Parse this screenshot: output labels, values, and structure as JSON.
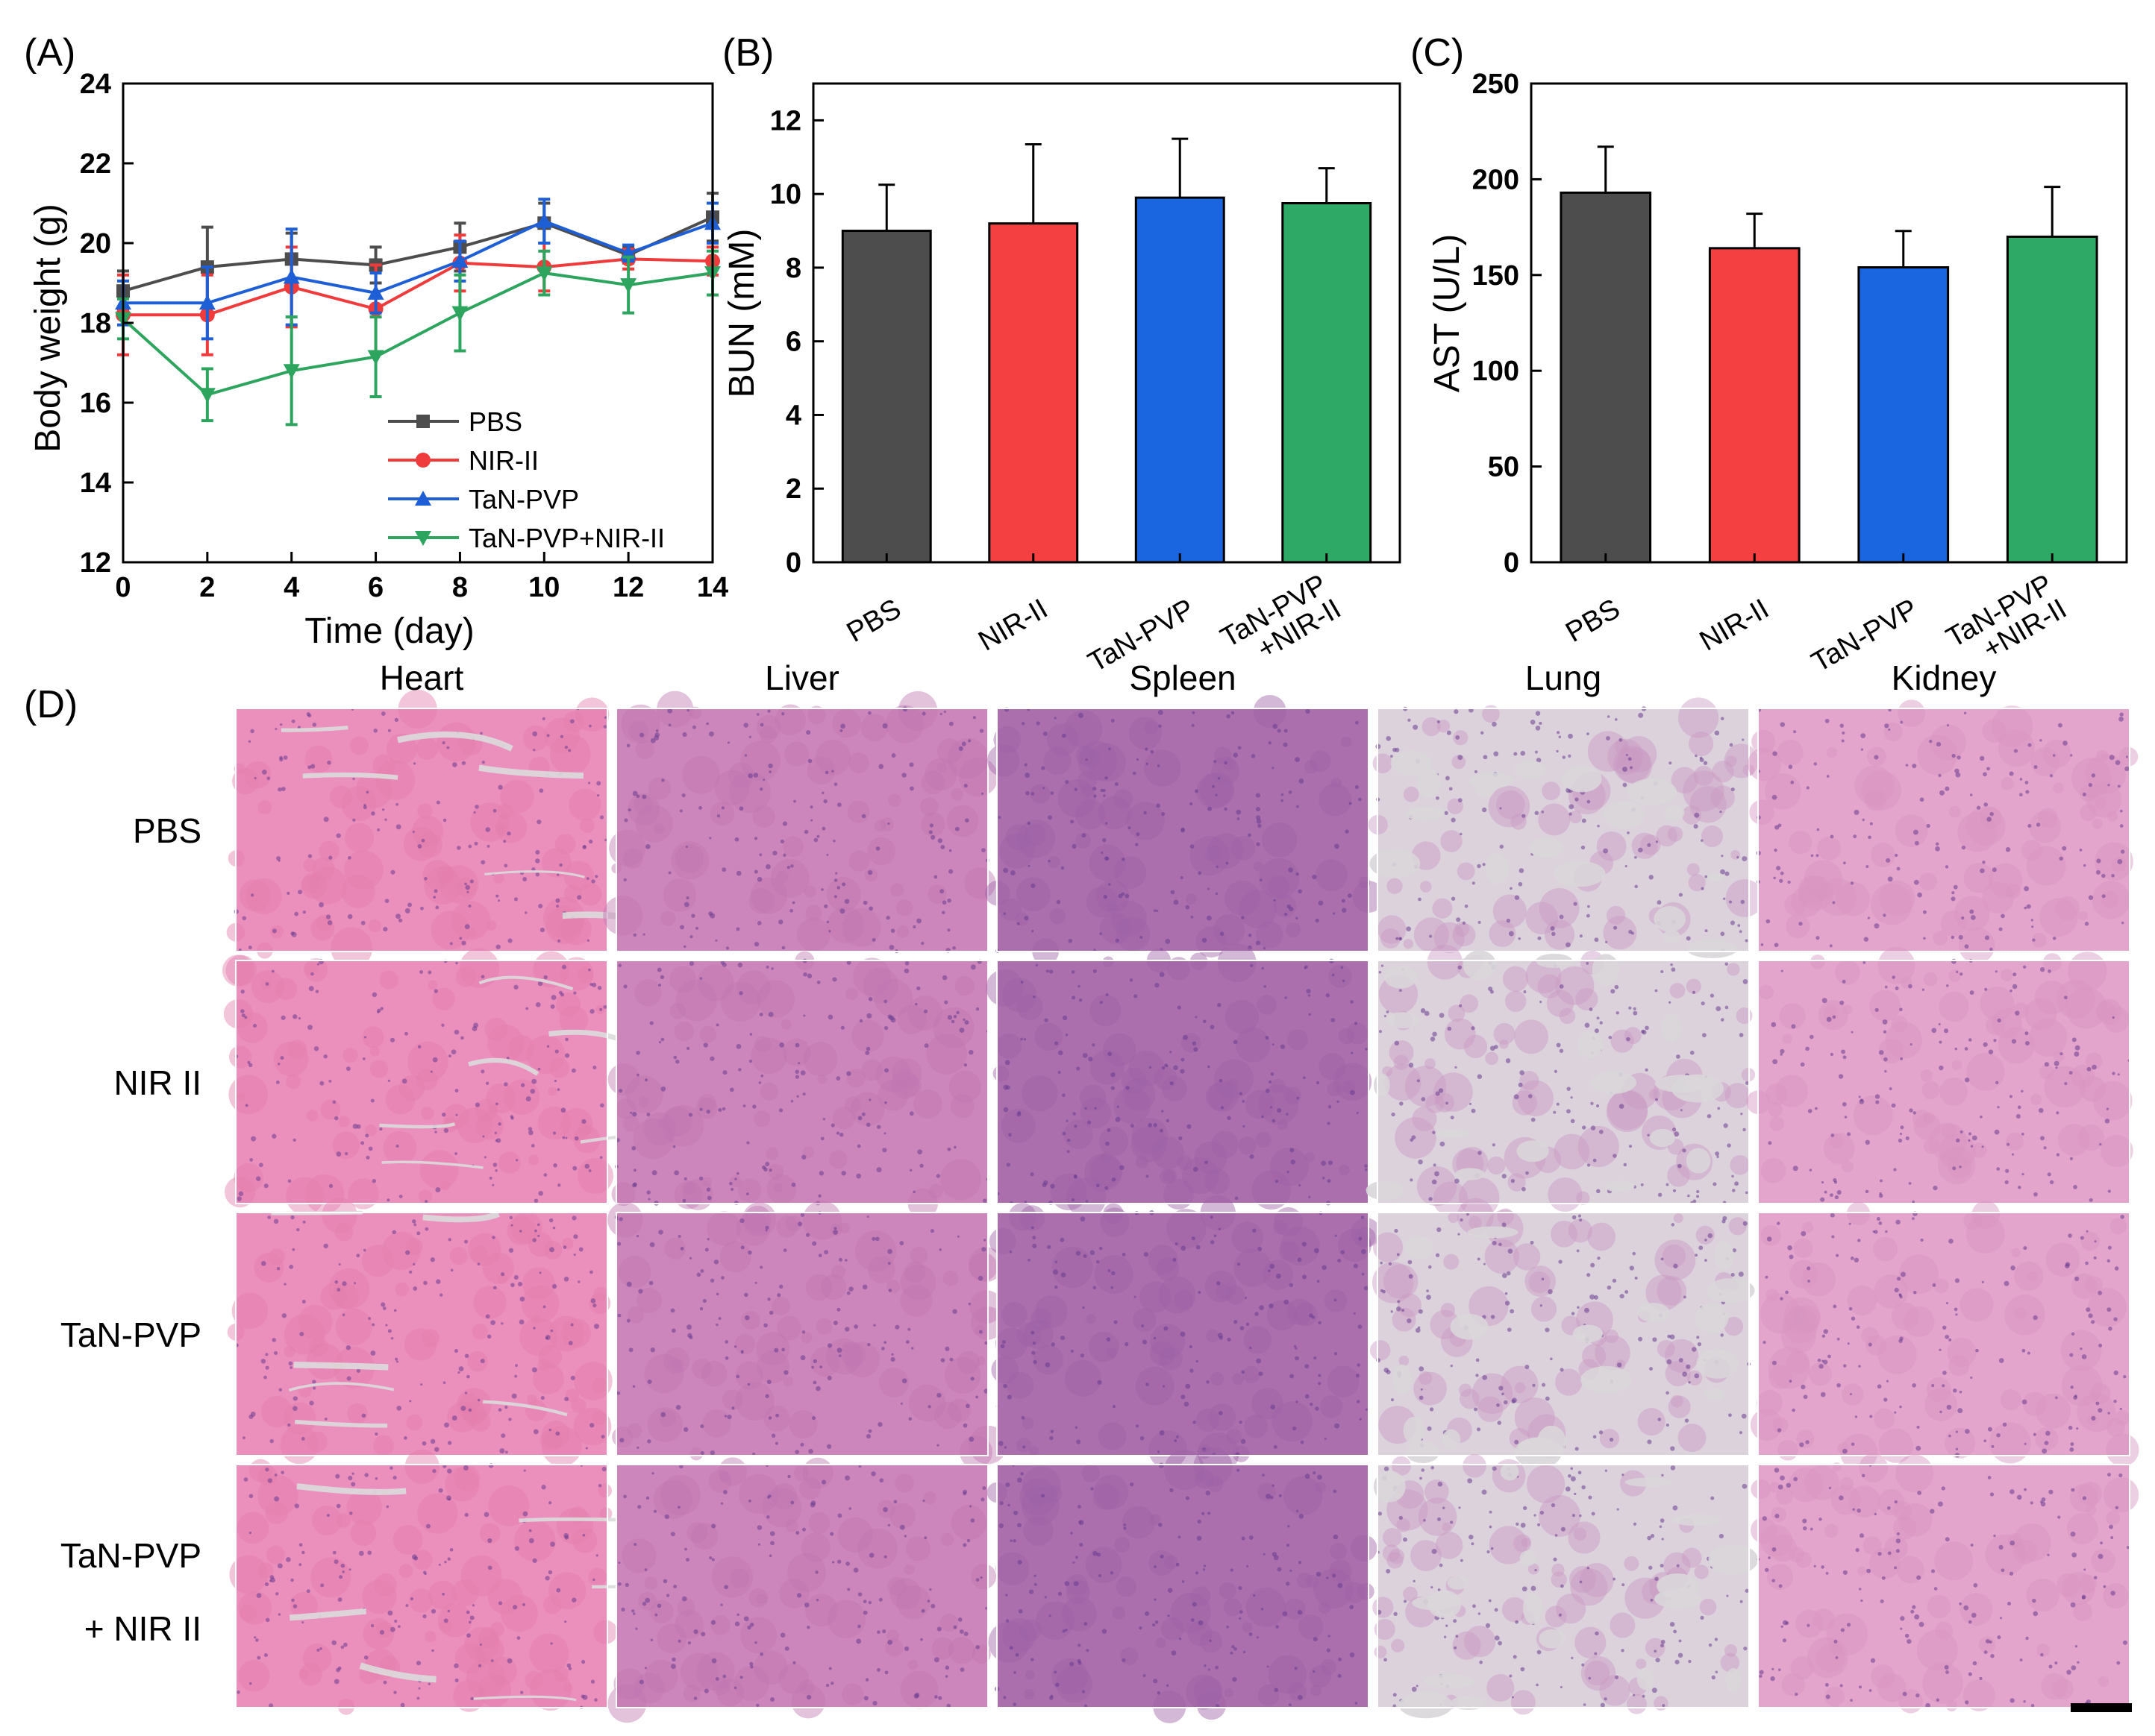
{
  "chart_data": [
    {
      "panel": "(A)",
      "type": "line",
      "xlabel": "Time (day)",
      "ylabel": "Body weight (g)",
      "xlim": [
        0,
        14
      ],
      "ylim": [
        12,
        24
      ],
      "xticks": [
        0,
        2,
        4,
        6,
        8,
        10,
        12,
        14
      ],
      "yticks": [
        12,
        14,
        16,
        18,
        20,
        22,
        24
      ],
      "x": [
        0,
        2,
        4,
        6,
        8,
        10,
        12,
        14
      ],
      "series": [
        {
          "name": "PBS",
          "color": "#4d4d4d",
          "marker": "square",
          "values": [
            18.8,
            19.4,
            19.6,
            19.45,
            19.9,
            20.5,
            19.7,
            20.65
          ],
          "errors": [
            0.5,
            1.0,
            0.65,
            0.45,
            0.6,
            0.5,
            0.2,
            0.6
          ]
        },
        {
          "name": "NIR-II",
          "color": "#ef3b3b",
          "marker": "circle",
          "values": [
            18.2,
            18.2,
            18.9,
            18.35,
            19.5,
            19.4,
            19.6,
            19.55
          ],
          "errors": [
            1.0,
            1.0,
            1.0,
            1.1,
            0.7,
            0.6,
            0.25,
            0.35
          ]
        },
        {
          "name": "TaN-PVP",
          "color": "#1f5fd6",
          "marker": "triangle-up",
          "values": [
            18.5,
            18.5,
            19.15,
            18.75,
            19.55,
            20.55,
            19.75,
            20.5
          ],
          "errors": [
            0.55,
            0.9,
            1.2,
            0.5,
            0.5,
            0.55,
            0.2,
            0.5
          ]
        },
        {
          "name": "TaN-PVP+NIR-II",
          "color": "#2ea55e",
          "marker": "triangle-down",
          "values": [
            18.1,
            16.2,
            16.8,
            17.15,
            18.25,
            19.25,
            18.95,
            19.25
          ],
          "errors": [
            0.5,
            0.65,
            1.35,
            1.0,
            0.95,
            0.55,
            0.7,
            0.55
          ]
        }
      ],
      "legend": "bottom-right"
    },
    {
      "panel": "(B)",
      "type": "bar",
      "ylabel": "BUN (mM)",
      "ylim": [
        0,
        13
      ],
      "yticks": [
        0,
        2,
        4,
        6,
        8,
        10,
        12
      ],
      "categories": [
        "PBS",
        "NIR-II",
        "TaN-PVP",
        "TaN-PVP\n+NIR-II"
      ],
      "values": [
        9.0,
        9.2,
        9.9,
        9.75
      ],
      "errors": [
        1.25,
        2.15,
        1.6,
        0.95
      ],
      "colors": [
        "#4d4d4d",
        "#f44040",
        "#1a66e0",
        "#2faa66"
      ]
    },
    {
      "panel": "(C)",
      "type": "bar",
      "ylabel": "AST (U/L)",
      "ylim": [
        0,
        250
      ],
      "yticks": [
        0,
        50,
        100,
        150,
        200,
        250
      ],
      "categories": [
        "PBS",
        "NIR-II",
        "TaN-PVP",
        "TaN-PVP\n+NIR-II"
      ],
      "values": [
        193,
        164,
        154,
        170
      ],
      "errors": [
        24,
        18,
        19,
        26
      ],
      "colors": [
        "#4d4d4d",
        "#f44040",
        "#1a66e0",
        "#2faa66"
      ]
    }
  ],
  "panelD": {
    "label": "(D)",
    "columns": [
      "Heart",
      "Liver",
      "Spleen",
      "Lung",
      "Kidney"
    ],
    "rows": [
      "PBS",
      "NIR II",
      "TaN-PVP",
      "TaN-PVP",
      "+ NIR II"
    ],
    "tissue_colors": {
      "Heart": [
        "#eb8fbc",
        "#e47fae"
      ],
      "Liver": [
        "#cd86bb",
        "#c178b1"
      ],
      "Spleen": [
        "#ac6fae",
        "#9d62a7"
      ],
      "Lung": [
        "#dcd2dc",
        "#c998c4"
      ],
      "Kidney": [
        "#e3a5cc",
        "#d894c0"
      ]
    }
  }
}
